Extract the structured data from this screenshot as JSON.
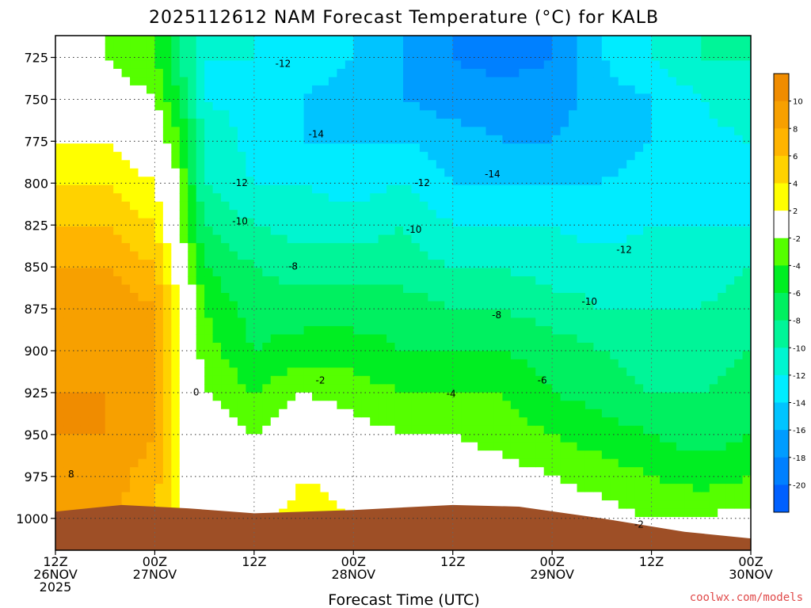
{
  "chart_data": {
    "type": "heatmap",
    "title": "2025112612 NAM Forecast Temperature (°C) for KALB",
    "xlabel": "Forecast Time (UTC)",
    "ylabel": "",
    "credit": "coolwx.com/models",
    "x_ticks": [
      {
        "hour": 0,
        "line1": "12Z",
        "line2": "26NOV",
        "line3": "2025"
      },
      {
        "hour": 12,
        "line1": "00Z",
        "line2": "27NOV",
        "line3": ""
      },
      {
        "hour": 24,
        "line1": "12Z",
        "line2": "",
        "line3": ""
      },
      {
        "hour": 36,
        "line1": "00Z",
        "line2": "28NOV",
        "line3": ""
      },
      {
        "hour": 48,
        "line1": "12Z",
        "line2": "",
        "line3": ""
      },
      {
        "hour": 60,
        "line1": "00Z",
        "line2": "29NOV",
        "line3": ""
      },
      {
        "hour": 72,
        "line1": "12Z",
        "line2": "",
        "line3": ""
      },
      {
        "hour": 84,
        "line1": "00Z",
        "line2": "30NOV",
        "line3": ""
      }
    ],
    "xlim": [
      0,
      84
    ],
    "y_ticks": [
      725,
      750,
      775,
      800,
      825,
      850,
      875,
      900,
      925,
      950,
      975,
      1000
    ],
    "ylim": [
      1019,
      712
    ],
    "colorbar": {
      "bands": [
        {
          "lo": 10,
          "hi": 12,
          "color": "#f08c00"
        },
        {
          "lo": 8,
          "hi": 10,
          "color": "#f7a000"
        },
        {
          "lo": 6,
          "hi": 8,
          "color": "#ffb400"
        },
        {
          "lo": 4,
          "hi": 6,
          "color": "#ffd200"
        },
        {
          "lo": 2,
          "hi": 4,
          "color": "#ffff00"
        },
        {
          "lo": -2,
          "hi": 2,
          "color": "#ffffff"
        },
        {
          "lo": -4,
          "hi": -2,
          "color": "#55ff00"
        },
        {
          "lo": -6,
          "hi": -4,
          "color": "#00ee22"
        },
        {
          "lo": -8,
          "hi": -6,
          "color": "#00f060"
        },
        {
          "lo": -10,
          "hi": -8,
          "color": "#00f598"
        },
        {
          "lo": -12,
          "hi": -10,
          "color": "#00f5d0"
        },
        {
          "lo": -14,
          "hi": -12,
          "color": "#00ecff"
        },
        {
          "lo": -16,
          "hi": -14,
          "color": "#00c4ff"
        },
        {
          "lo": -18,
          "hi": -16,
          "color": "#009cff"
        },
        {
          "lo": -20,
          "hi": -18,
          "color": "#0080ff"
        },
        {
          "lo": -22,
          "hi": -20,
          "color": "#0060ff"
        }
      ],
      "labels": [
        10,
        8,
        6,
        4,
        2,
        -2,
        -4,
        -6,
        -8,
        -10,
        -12,
        -14,
        -16,
        -18,
        -20
      ]
    },
    "terrain_color": "#9e4f26",
    "surface_pressure": [
      {
        "hour": 0,
        "p": 996
      },
      {
        "hour": 8,
        "p": 992
      },
      {
        "hour": 16,
        "p": 994
      },
      {
        "hour": 24,
        "p": 997
      },
      {
        "hour": 36,
        "p": 995
      },
      {
        "hour": 48,
        "p": 992
      },
      {
        "hour": 56,
        "p": 993
      },
      {
        "hour": 66,
        "p": 1000
      },
      {
        "hour": 76,
        "p": 1008
      },
      {
        "hour": 84,
        "p": 1012
      }
    ],
    "temperature_profiles": [
      {
        "hour": 0,
        "levels": [
          725,
          750,
          775,
          800,
          825,
          850,
          875,
          900,
          925,
          950,
          975,
          1000
        ],
        "t": [
          -2,
          0,
          2,
          4,
          6,
          8,
          9,
          9,
          10,
          10,
          9,
          9
        ]
      },
      {
        "hour": 6,
        "levels": [
          725,
          750,
          775,
          800,
          825,
          850,
          875,
          900,
          925,
          950,
          975,
          1000
        ],
        "t": [
          -2,
          0,
          2,
          4,
          6,
          8,
          10,
          10,
          10,
          10,
          9,
          9
        ]
      },
      {
        "hour": 12,
        "levels": [
          725,
          750,
          775,
          800,
          825,
          850,
          875,
          900,
          925,
          950,
          975,
          1000
        ],
        "t": [
          -4,
          -2,
          0,
          2,
          4,
          6,
          8,
          9,
          9,
          8,
          7,
          6
        ]
      },
      {
        "hour": 15,
        "levels": [
          725,
          750,
          775,
          800,
          825,
          850,
          875,
          900,
          925,
          950,
          975,
          1000
        ],
        "t": [
          -8,
          -6,
          -4,
          -2,
          -2,
          0,
          2,
          2,
          2,
          2,
          2,
          2
        ]
      },
      {
        "hour": 18,
        "levels": [
          725,
          750,
          775,
          800,
          825,
          850,
          875,
          900,
          925,
          950,
          975,
          1000
        ],
        "t": [
          -12,
          -12,
          -10,
          -10,
          -8,
          -6,
          -4,
          -3,
          -2,
          0,
          1,
          2
        ]
      },
      {
        "hour": 24,
        "levels": [
          725,
          750,
          775,
          800,
          825,
          850,
          875,
          900,
          925,
          950,
          975,
          1000
        ],
        "t": [
          -12,
          -13,
          -13,
          -12,
          -10,
          -8,
          -7,
          -6,
          -4,
          -2,
          0,
          1
        ]
      },
      {
        "hour": 30,
        "levels": [
          725,
          750,
          775,
          800,
          825,
          850,
          875,
          900,
          925,
          950,
          975,
          1000
        ],
        "t": [
          -13,
          -14,
          -14,
          -12,
          -11,
          -9,
          -7,
          -5,
          -2,
          0,
          2,
          3
        ]
      },
      {
        "hour": 36,
        "levels": [
          725,
          750,
          775,
          800,
          825,
          850,
          875,
          900,
          925,
          950,
          975,
          1000
        ],
        "t": [
          -14,
          -15,
          -14,
          -13,
          -11,
          -9,
          -7,
          -5,
          -3,
          -1,
          1,
          2
        ]
      },
      {
        "hour": 42,
        "levels": [
          725,
          750,
          775,
          800,
          825,
          850,
          875,
          900,
          925,
          950,
          975,
          1000
        ],
        "t": [
          -16,
          -16,
          -14,
          -12,
          -10,
          -9,
          -7,
          -6,
          -4,
          -2,
          0,
          1
        ]
      },
      {
        "hour": 48,
        "levels": [
          725,
          750,
          775,
          800,
          825,
          850,
          875,
          900,
          925,
          950,
          975,
          1000
        ],
        "t": [
          -18,
          -17,
          -15,
          -14,
          -12,
          -10,
          -8,
          -6,
          -4,
          -2,
          0,
          1
        ]
      },
      {
        "hour": 54,
        "levels": [
          725,
          750,
          775,
          800,
          825,
          850,
          875,
          900,
          925,
          950,
          975,
          1000
        ],
        "t": [
          -19,
          -17,
          -16,
          -14,
          -12,
          -10,
          -8,
          -6,
          -4,
          -3,
          -1,
          1
        ]
      },
      {
        "hour": 60,
        "levels": [
          725,
          750,
          775,
          800,
          825,
          850,
          875,
          900,
          925,
          950,
          975,
          1000
        ],
        "t": [
          -18,
          -17,
          -16,
          -14,
          -12,
          -11,
          -9,
          -7,
          -6,
          -4,
          -2,
          0
        ]
      },
      {
        "hour": 66,
        "levels": [
          725,
          750,
          775,
          800,
          825,
          850,
          875,
          900,
          925,
          950,
          975,
          1000
        ],
        "t": [
          -14,
          -15,
          -15,
          -14,
          -13,
          -11,
          -10,
          -8,
          -7,
          -5,
          -3,
          -1
        ]
      },
      {
        "hour": 72,
        "levels": [
          725,
          750,
          775,
          800,
          825,
          850,
          875,
          900,
          925,
          950,
          975,
          1000
        ],
        "t": [
          -12,
          -14,
          -14,
          -13,
          -12,
          -11,
          -10,
          -9,
          -8,
          -6,
          -4,
          -2
        ]
      },
      {
        "hour": 78,
        "levels": [
          725,
          750,
          775,
          800,
          825,
          850,
          875,
          900,
          925,
          950,
          975,
          1000
        ],
        "t": [
          -10,
          -12,
          -13,
          -13,
          -12,
          -11,
          -10,
          -9,
          -8,
          -7,
          -5,
          -2
        ]
      },
      {
        "hour": 84,
        "levels": [
          725,
          750,
          775,
          800,
          825,
          850,
          875,
          900,
          925,
          950,
          975,
          1000
        ],
        "t": [
          -10,
          -10,
          -12,
          -12,
          -12,
          -10,
          -9,
          -8,
          -7,
          -6,
          -4,
          -1
        ]
      }
    ],
    "contour_labels": [
      {
        "text": "-12",
        "hour": 27.5,
        "p": 729
      },
      {
        "text": "-14",
        "hour": 31.5,
        "p": 771
      },
      {
        "text": "-12",
        "hour": 22.3,
        "p": 800
      },
      {
        "text": "-10",
        "hour": 22.3,
        "p": 823
      },
      {
        "text": "-12",
        "hour": 44.3,
        "p": 800
      },
      {
        "text": "-14",
        "hour": 52.8,
        "p": 795
      },
      {
        "text": "-10",
        "hour": 43.3,
        "p": 828
      },
      {
        "text": "-12",
        "hour": 68.7,
        "p": 840
      },
      {
        "text": "-8",
        "hour": 28.7,
        "p": 850
      },
      {
        "text": "-8",
        "hour": 53.3,
        "p": 879
      },
      {
        "text": "-10",
        "hour": 64.5,
        "p": 871
      },
      {
        "text": "-6",
        "hour": 58.8,
        "p": 918
      },
      {
        "text": "-4",
        "hour": 47.8,
        "p": 926
      },
      {
        "text": "-2",
        "hour": 32.0,
        "p": 918
      },
      {
        "text": "0",
        "hour": 17.0,
        "p": 925
      },
      {
        "text": "8",
        "hour": 1.9,
        "p": 974
      },
      {
        "text": "-2",
        "hour": 70.5,
        "p": 1004
      }
    ]
  }
}
